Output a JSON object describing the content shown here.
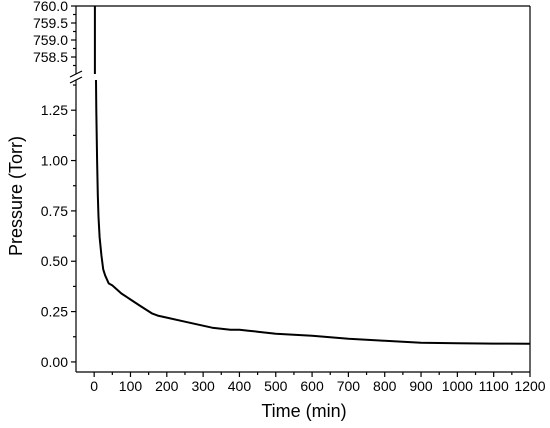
{
  "chart_data": {
    "type": "line",
    "xlabel": "Time (min)",
    "ylabel": "Pressure (Torr)",
    "xlim": [
      -50,
      1200
    ],
    "ylim_lower": [
      -0.05,
      1.4
    ],
    "ylim_upper": [
      758.0,
      760.0
    ],
    "y_axis_break": true,
    "grid": false,
    "legend": "none",
    "x_ticks": [
      0,
      100,
      200,
      300,
      400,
      500,
      600,
      700,
      800,
      900,
      1000,
      1100,
      1200
    ],
    "x_tick_labels": [
      "0",
      "100",
      "200",
      "300",
      "400",
      "500",
      "600",
      "700",
      "800",
      "900",
      "1000",
      "1100",
      "1200"
    ],
    "y_ticks_lower": [
      0.0,
      0.25,
      0.5,
      0.75,
      1.0,
      1.25
    ],
    "y_tick_labels_lower": [
      "0.00",
      "0.25",
      "0.50",
      "0.75",
      "1.00",
      "1.25"
    ],
    "y_ticks_upper": [
      758.5,
      759.0,
      759.5,
      760.0
    ],
    "y_tick_labels_upper": [
      "758.5",
      "759.0",
      "759.5",
      "760.0"
    ],
    "series": [
      {
        "color": "#000000",
        "segment_upper": {
          "x": [
            2,
            2
          ],
          "y": [
            760.0,
            758.0
          ]
        },
        "segment_lower": {
          "x": [
            5,
            6,
            8,
            10,
            12,
            15,
            20,
            25,
            30,
            40,
            50,
            75,
            100,
            125,
            160,
            175,
            200,
            250,
            275,
            300,
            325,
            350,
            375,
            400,
            425,
            450,
            475,
            500,
            550,
            600,
            700,
            800,
            900,
            1000,
            1100,
            1200
          ],
          "y": [
            1.5,
            1.25,
            1.0,
            0.83,
            0.72,
            0.62,
            0.53,
            0.46,
            0.43,
            0.39,
            0.38,
            0.34,
            0.31,
            0.28,
            0.24,
            0.23,
            0.22,
            0.2,
            0.19,
            0.18,
            0.17,
            0.165,
            0.16,
            0.16,
            0.155,
            0.15,
            0.145,
            0.14,
            0.135,
            0.13,
            0.115,
            0.105,
            0.095,
            0.093,
            0.091,
            0.09
          ]
        }
      }
    ]
  }
}
